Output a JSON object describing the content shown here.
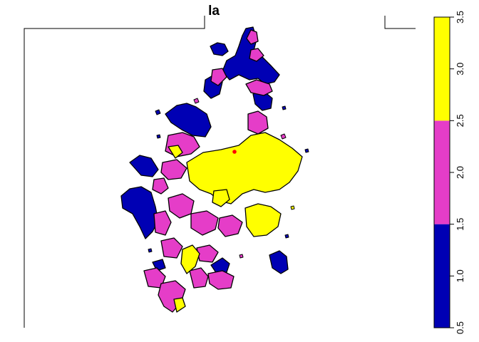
{
  "map": {
    "title": "la",
    "legend": {
      "type": "continuous-binned",
      "range": [
        0.5,
        3.5
      ],
      "breaks": [
        0.5,
        1.5,
        2.5,
        3.5
      ],
      "bins": [
        {
          "from": 0.5,
          "to": 1.5,
          "color": "#0000B4"
        },
        {
          "from": 1.5,
          "to": 2.5,
          "color": "#E53DC8"
        },
        {
          "from": 2.5,
          "to": 3.5,
          "color": "#FFFF00"
        }
      ],
      "ticks": [
        "0.5",
        "1.0",
        "1.5",
        "2.0",
        "2.5",
        "3.0",
        "3.5"
      ],
      "placement": "right"
    },
    "colors": {
      "class1": "#0000B4",
      "class2": "#E53DC8",
      "class3": "#FFFF00",
      "outline": "#000000",
      "point": "#FF0000"
    },
    "point_marker": "red-dot"
  }
}
